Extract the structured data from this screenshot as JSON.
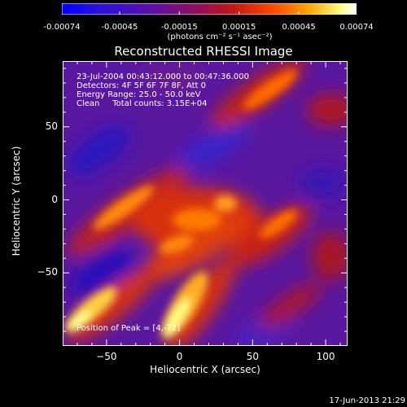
{
  "title": "Reconstructed RHESSI Image",
  "colorbar": {
    "ticks": [
      "-0.00074",
      "-0.00045",
      "-0.00015",
      "0.00015",
      "0.00045",
      "0.00074"
    ],
    "tick_values": [
      -0.00074,
      -0.00045,
      -0.00015,
      0.00015,
      0.00045,
      0.00074
    ],
    "units": "(photons cm⁻² s⁻¹ asec⁻²)",
    "colors": [
      "#0000ff",
      "#4a00c8",
      "#7a1490",
      "#b81414",
      "#ff4400",
      "#ffa000",
      "#ffff88",
      "#ffffff"
    ]
  },
  "info": {
    "line1": "23-Jul-2004 00:43:12.000 to 00:47:36.000",
    "line2": "Detectors: 4F 5F 6F 7F 8F, Att 0",
    "line3": "Energy Range: 25.0 - 50.0 keV",
    "line4": "Clean     Total counts: 3.15E+04",
    "peak": "Position of Peak = [4,-72]"
  },
  "footer": "17-Jun-2013 21:29",
  "chart_data": {
    "type": "heatmap",
    "title": "Reconstructed RHESSI Image",
    "xlabel": "Heliocentric X (arcsec)",
    "ylabel": "Heliocentric Y (arcsec)",
    "xlim": [
      -80,
      115
    ],
    "ylim": [
      -100,
      95
    ],
    "x_ticks": [
      -50,
      0,
      50,
      100
    ],
    "y_ticks": [
      -50,
      0,
      50
    ],
    "x_tick_labels": [
      "−50",
      "0",
      "50",
      "100"
    ],
    "y_tick_labels": [
      "−50",
      "0",
      "50"
    ],
    "value_range": [
      -0.00074,
      0.00074
    ],
    "peak_position": [
      4,
      -72
    ]
  }
}
